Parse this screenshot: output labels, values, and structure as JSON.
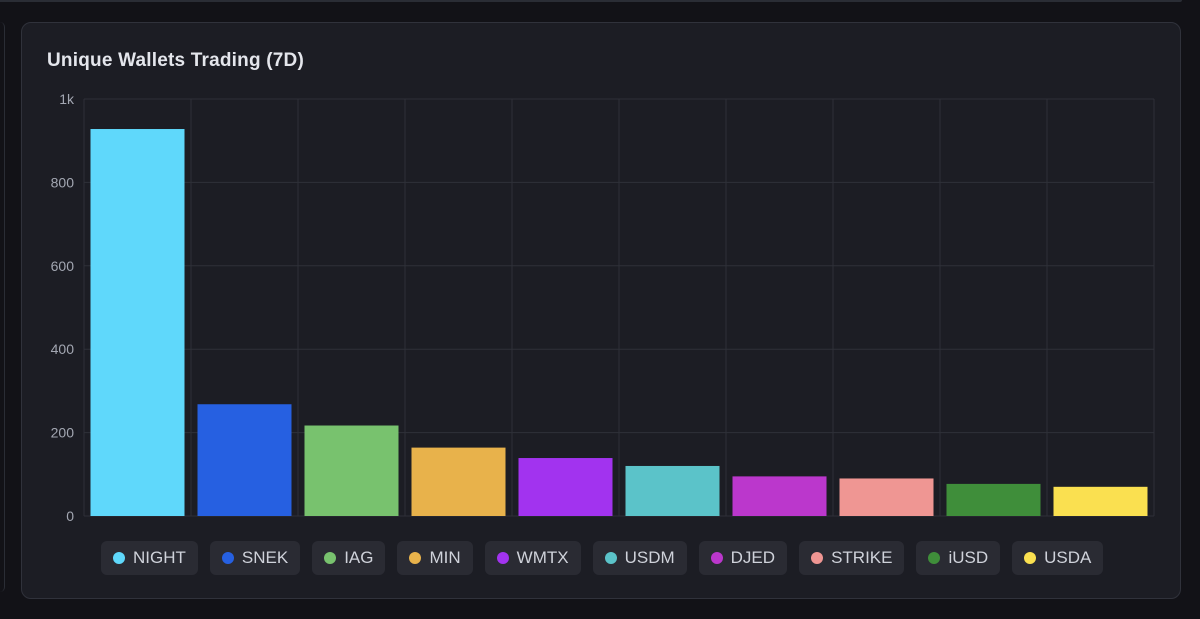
{
  "card": {
    "title": "Unique Wallets Trading (7D)"
  },
  "chart_data": {
    "type": "bar",
    "title": "Unique Wallets Trading (7D)",
    "xlabel": "",
    "ylabel": "",
    "ylim": [
      0,
      1000
    ],
    "yticks": [
      0,
      200,
      400,
      600,
      800,
      1000
    ],
    "ytick_labels": [
      "0",
      "200",
      "400",
      "600",
      "800",
      "1k"
    ],
    "grid": true,
    "legend_position": "bottom",
    "categories": [
      "NIGHT",
      "SNEK",
      "IAG",
      "MIN",
      "WMTX",
      "USDM",
      "DJED",
      "STRIKE",
      "iUSD",
      "USDA"
    ],
    "values": [
      928,
      268,
      217,
      164,
      139,
      120,
      95,
      90,
      77,
      70
    ],
    "colors": [
      "#5fd8fb",
      "#2660e1",
      "#78c26e",
      "#e8b24b",
      "#a233ef",
      "#5bc3c9",
      "#bb37cc",
      "#ef9693",
      "#3f8e3a",
      "#fae050"
    ]
  }
}
